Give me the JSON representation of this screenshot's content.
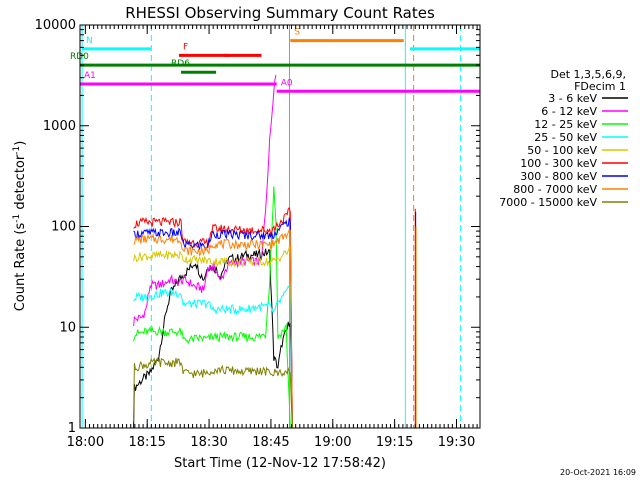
{
  "chart_data": {
    "type": "line",
    "title": "RHESSI Observing Summary Count Rates",
    "xlabel": "Start Time (12-Nov-12 17:58:42)",
    "ylabel": "Count Rate (s⁻¹ detector⁻¹)",
    "ylabel_parts": {
      "main": "Count Rate (s",
      "sup1": "-1",
      "mid": " detector",
      "sup2": "-1",
      "end": ")"
    },
    "timestamp": "20-Oct-2021 16:09",
    "x_axis": {
      "unit": "minutes after 17:58:42",
      "range": [
        0,
        97
      ],
      "ticks": [
        {
          "label": "18:00",
          "t": 1.3
        },
        {
          "label": "18:15",
          "t": 16.3
        },
        {
          "label": "18:30",
          "t": 31.3
        },
        {
          "label": "18:45",
          "t": 46.3
        },
        {
          "label": "19:00",
          "t": 61.3
        },
        {
          "label": "19:15",
          "t": 76.3
        },
        {
          "label": "19:30",
          "t": 91.3
        }
      ]
    },
    "y_axis": {
      "scale": "log",
      "range": [
        1,
        10000
      ],
      "ticks": [
        {
          "label": "1",
          "v": 1
        },
        {
          "label": "10",
          "v": 10
        },
        {
          "label": "100",
          "v": 100
        },
        {
          "label": "1000",
          "v": 1000
        },
        {
          "label": "10000",
          "v": 10000
        }
      ]
    },
    "legend": {
      "placement": "right",
      "header": [
        "Det 1,3,5,6,9,",
        "FDecim 1"
      ],
      "entries": [
        {
          "label": "3 - 6 keV",
          "color": "#000000"
        },
        {
          "label": "6 - 12 keV",
          "color": "#ff00ff"
        },
        {
          "label": "12 - 25 keV",
          "color": "#00ff00"
        },
        {
          "label": "25 - 50 keV",
          "color": "#00ffff"
        },
        {
          "label": "50 - 100 keV",
          "color": "#d8c800"
        },
        {
          "label": "100 - 300 keV",
          "color": "#ff0000"
        },
        {
          "label": "300 - 800 keV",
          "color": "#0000ff"
        },
        {
          "label": "800 - 7000 keV",
          "color": "#ff8000"
        },
        {
          "label": "7000 - 15000 keV",
          "color": "#808000"
        }
      ]
    },
    "series": [
      {
        "name": "3 - 6 keV",
        "color": "#000000",
        "points": [
          [
            13,
            1
          ],
          [
            13.2,
            2.5
          ],
          [
            15,
            3
          ],
          [
            17,
            3.5
          ],
          [
            19,
            5
          ],
          [
            21,
            15
          ],
          [
            22,
            22
          ],
          [
            23,
            25
          ],
          [
            24,
            30
          ],
          [
            25,
            33
          ],
          [
            26.5,
            38
          ],
          [
            27,
            40
          ],
          [
            28,
            45
          ],
          [
            29,
            35
          ],
          [
            30,
            30
          ],
          [
            31,
            40
          ],
          [
            33,
            38
          ],
          [
            34,
            32
          ],
          [
            35,
            40
          ],
          [
            36,
            48
          ],
          [
            38,
            48
          ],
          [
            40,
            52
          ],
          [
            43,
            52
          ],
          [
            45,
            55
          ],
          [
            46,
            55
          ],
          [
            47,
            5
          ],
          [
            48,
            4
          ],
          [
            49,
            7
          ],
          [
            50,
            9
          ],
          [
            51,
            12
          ],
          [
            51.5,
            1
          ]
        ]
      },
      {
        "name": "6 - 12 keV",
        "color": "#ff00ff",
        "points": [
          [
            13,
            11
          ],
          [
            13.2,
            12
          ],
          [
            15,
            12.5
          ],
          [
            16,
            15
          ],
          [
            17,
            26
          ],
          [
            19,
            26
          ],
          [
            21,
            28
          ],
          [
            22,
            30
          ],
          [
            23,
            28
          ],
          [
            24.5,
            28
          ],
          [
            25,
            30
          ],
          [
            27,
            27
          ],
          [
            28,
            25
          ],
          [
            29,
            25
          ],
          [
            30,
            23
          ],
          [
            31,
            40
          ],
          [
            33,
            38
          ],
          [
            34,
            28
          ],
          [
            35,
            35
          ],
          [
            36,
            42
          ],
          [
            38,
            44
          ],
          [
            40,
            45
          ],
          [
            42,
            45
          ],
          [
            44,
            45
          ],
          [
            45,
            150
          ],
          [
            46,
            700
          ],
          [
            47,
            2400
          ],
          [
            47.5,
            3200
          ]
        ]
      },
      {
        "name": "12 - 25 keV",
        "color": "#00ff00",
        "points": [
          [
            13,
            8
          ],
          [
            13.2,
            8.5
          ],
          [
            16,
            9
          ],
          [
            17,
            9
          ],
          [
            18,
            9
          ],
          [
            19,
            9.2
          ],
          [
            21,
            9
          ],
          [
            23,
            9
          ],
          [
            24.5,
            9
          ],
          [
            25,
            7.5
          ],
          [
            27,
            7.5
          ],
          [
            29,
            7.8
          ],
          [
            31,
            7.6
          ],
          [
            32,
            8
          ],
          [
            34,
            8
          ],
          [
            36,
            8
          ],
          [
            40,
            8
          ],
          [
            43,
            8
          ],
          [
            45,
            8.5
          ],
          [
            46,
            30
          ],
          [
            47,
            250
          ],
          [
            47.5,
            120
          ],
          [
            48,
            8
          ],
          [
            49,
            9
          ],
          [
            50,
            10
          ],
          [
            51,
            1
          ]
        ]
      },
      {
        "name": "25 - 50 keV",
        "color": "#00ffff",
        "points": [
          [
            13,
            19
          ],
          [
            14,
            20
          ],
          [
            16,
            20
          ],
          [
            18,
            21
          ],
          [
            20,
            22
          ],
          [
            22,
            22
          ],
          [
            24.5,
            22
          ],
          [
            25,
            17
          ],
          [
            27,
            17
          ],
          [
            29,
            17
          ],
          [
            31,
            17.5
          ],
          [
            32,
            15
          ],
          [
            34,
            15
          ],
          [
            36,
            15
          ],
          [
            38,
            15
          ],
          [
            40,
            15
          ],
          [
            43,
            16
          ],
          [
            45,
            16
          ],
          [
            46,
            16
          ],
          [
            47,
            14
          ],
          [
            48,
            17
          ],
          [
            50,
            22
          ],
          [
            51,
            24
          ],
          [
            51.5,
            1
          ]
        ]
      },
      {
        "name": "50 - 100 keV",
        "color": "#d8c800",
        "points": [
          [
            13,
            48
          ],
          [
            14,
            50
          ],
          [
            16,
            51
          ],
          [
            18,
            51
          ],
          [
            20,
            52
          ],
          [
            22,
            52
          ],
          [
            24.5,
            52
          ],
          [
            25,
            48
          ],
          [
            27,
            47
          ],
          [
            29,
            46
          ],
          [
            31,
            46
          ],
          [
            32,
            45
          ],
          [
            34,
            45
          ],
          [
            36,
            45
          ],
          [
            38,
            44
          ],
          [
            40,
            44
          ],
          [
            43,
            45
          ],
          [
            45,
            45
          ],
          [
            46,
            44
          ],
          [
            47,
            45
          ],
          [
            48,
            48
          ],
          [
            50,
            55
          ],
          [
            51,
            58
          ],
          [
            51.5,
            1
          ]
        ]
      },
      {
        "name": "100 - 300 keV",
        "color": "#ff0000",
        "points": [
          [
            13,
            105
          ],
          [
            14,
            108
          ],
          [
            16,
            110
          ],
          [
            18,
            110
          ],
          [
            20,
            110
          ],
          [
            22,
            110
          ],
          [
            24.5,
            110
          ],
          [
            25,
            70
          ],
          [
            27,
            70
          ],
          [
            29,
            69
          ],
          [
            31,
            68
          ],
          [
            32,
            95
          ],
          [
            34,
            95
          ],
          [
            36,
            94
          ],
          [
            38,
            93
          ],
          [
            40,
            92
          ],
          [
            43,
            92
          ],
          [
            45,
            92
          ],
          [
            46,
            92
          ],
          [
            47,
            95
          ],
          [
            48,
            105
          ],
          [
            50,
            125
          ],
          [
            51,
            145
          ],
          [
            51.5,
            1
          ]
        ]
      },
      {
        "name": "300 - 800 keV",
        "color": "#0000ff",
        "points": [
          [
            13,
            82
          ],
          [
            14,
            85
          ],
          [
            16,
            86
          ],
          [
            18,
            86
          ],
          [
            20,
            86
          ],
          [
            22,
            86
          ],
          [
            24.5,
            86
          ],
          [
            25,
            66
          ],
          [
            27,
            65
          ],
          [
            29,
            65
          ],
          [
            31,
            64
          ],
          [
            32,
            84
          ],
          [
            34,
            84
          ],
          [
            36,
            83
          ],
          [
            38,
            83
          ],
          [
            40,
            82
          ],
          [
            43,
            82
          ],
          [
            45,
            82
          ],
          [
            46,
            82
          ],
          [
            47,
            84
          ],
          [
            48,
            92
          ],
          [
            50,
            108
          ],
          [
            51,
            115
          ],
          [
            51.5,
            1
          ]
        ]
      },
      {
        "name": "800 - 7000 keV",
        "color": "#ff8000",
        "points": [
          [
            13,
            72
          ],
          [
            14,
            74
          ],
          [
            16,
            75
          ],
          [
            18,
            75
          ],
          [
            20,
            75
          ],
          [
            22,
            75
          ],
          [
            24.5,
            75
          ],
          [
            25,
            58
          ],
          [
            27,
            57
          ],
          [
            29,
            57
          ],
          [
            31,
            56
          ],
          [
            32,
            68
          ],
          [
            34,
            67
          ],
          [
            36,
            67
          ],
          [
            38,
            66
          ],
          [
            40,
            66
          ],
          [
            43,
            66
          ],
          [
            45,
            66
          ],
          [
            46,
            66
          ],
          [
            47,
            68
          ],
          [
            48,
            72
          ],
          [
            50,
            82
          ],
          [
            51,
            88
          ],
          [
            51.5,
            1
          ]
        ]
      },
      {
        "name": "7000 - 15000 keV",
        "color": "#808000",
        "points": [
          [
            13,
            1.2
          ],
          [
            13.2,
            4
          ],
          [
            15,
            4.2
          ],
          [
            17,
            4.3
          ],
          [
            19,
            4.5
          ],
          [
            21,
            4.4
          ],
          [
            24.5,
            4.5
          ],
          [
            25,
            3.5
          ],
          [
            27,
            3.5
          ],
          [
            29,
            3.4
          ],
          [
            31,
            3.6
          ],
          [
            32,
            3.8
          ],
          [
            34,
            3.8
          ],
          [
            36,
            3.7
          ],
          [
            38,
            3.7
          ],
          [
            40,
            3.6
          ],
          [
            43,
            3.7
          ],
          [
            45,
            3.6
          ],
          [
            47,
            3.5
          ],
          [
            49,
            3.6
          ],
          [
            51,
            3.5
          ],
          [
            51.5,
            1
          ]
        ]
      }
    ],
    "late_spikes": [
      {
        "t": 81.3,
        "value": 150,
        "color": "#ff0000"
      },
      {
        "t": 81.4,
        "value": 140,
        "color": "#0000ff"
      },
      {
        "t": 81.5,
        "value": 100,
        "color": "#ff8000"
      }
    ],
    "flag_bars": [
      {
        "label": "N",
        "color": "#00ffff",
        "value": 5800,
        "segments": [
          [
            0.5,
            17.3
          ],
          [
            80,
            97
          ]
        ]
      },
      {
        "label": "F",
        "color": "#ff0000",
        "value": 5000,
        "segments": [
          [
            24,
            36
          ],
          [
            35,
            44
          ]
        ]
      },
      {
        "label": "RD0",
        "color": "#008000",
        "value": 4000,
        "segments": [
          [
            0,
            97
          ]
        ]
      },
      {
        "label": "RD6",
        "color": "#008000",
        "value": 3400,
        "segments": [
          [
            24.5,
            33
          ]
        ]
      },
      {
        "label": "S",
        "color": "#ff8000",
        "value": 7000,
        "segments": [
          [
            51,
            78.5
          ]
        ]
      },
      {
        "label": "A1",
        "color": "#ff00ff",
        "value": 2600,
        "segments": [
          [
            0,
            47.7
          ]
        ]
      },
      {
        "label": "A0",
        "color": "#ff00ff",
        "value": 2200,
        "segments": [
          [
            47.7,
            97
          ]
        ]
      }
    ],
    "vlines": [
      {
        "t": 17.3,
        "color": "#00ffff",
        "style": "dashed"
      },
      {
        "t": 92.3,
        "color": "#00ffff",
        "style": "dashed"
      },
      {
        "t": 0.5,
        "color": "#00ffff",
        "style": "solid"
      },
      {
        "t": 50.8,
        "color": "#ff8000",
        "style": "solid"
      },
      {
        "t": 78.9,
        "color": "#00ffff",
        "style": "solid"
      },
      {
        "t": 80.9,
        "color": "#ff8000",
        "style": "dashed"
      }
    ]
  }
}
